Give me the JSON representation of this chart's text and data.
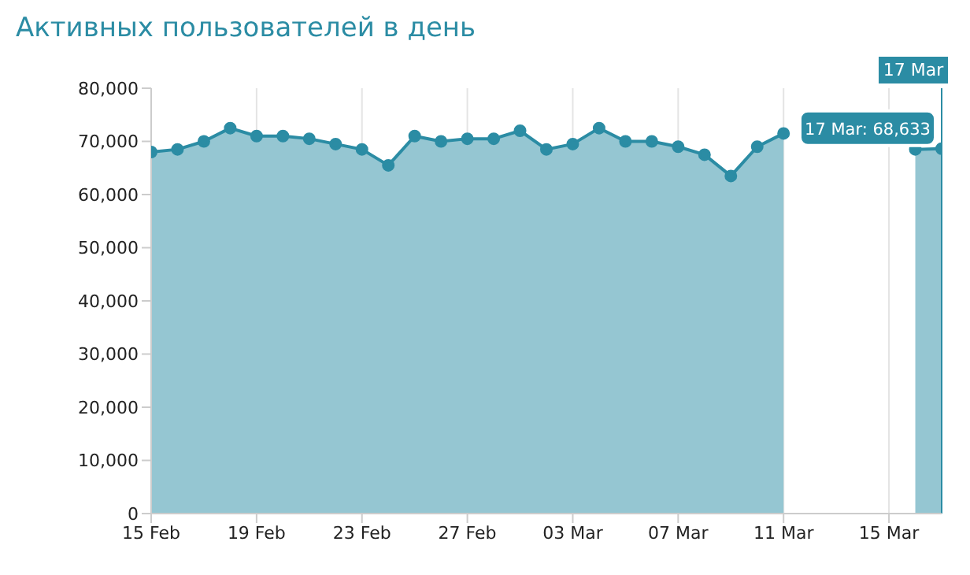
{
  "chart_data": {
    "type": "area",
    "title": "Активных пользователей в день",
    "x": [
      "--02-15",
      "--02-16",
      "--02-17",
      "--02-18",
      "--02-19",
      "--02-20",
      "--02-21",
      "--02-22",
      "--02-23",
      "--02-24",
      "--02-25",
      "--02-26",
      "--02-27",
      "--02-28",
      "--03-01",
      "--03-02",
      "--03-03",
      "--03-04",
      "--03-05",
      "--03-06",
      "--03-07",
      "--03-08",
      "--03-09",
      "--03-10",
      "--03-11",
      "--03-12",
      "--03-13",
      "--03-14",
      "--03-15",
      "--03-16",
      "--03-17"
    ],
    "series": [
      {
        "color": "#2b8ca4",
        "values": [
          68000,
          68500,
          70000,
          72500,
          71000,
          71000,
          70500,
          69500,
          68500,
          65500,
          71000,
          70000,
          70500,
          70500,
          72000,
          68500,
          69500,
          72500,
          70000,
          70000,
          69000,
          67500,
          63500,
          69000,
          71500,
          null,
          null,
          null,
          null,
          68500,
          68633
        ]
      }
    ],
    "xlim": [
      "--02-15",
      "--03-17"
    ],
    "xticks": [
      {
        "value": "--02-15",
        "label": "15 Feb"
      },
      {
        "value": "--02-19",
        "label": "19 Feb"
      },
      {
        "value": "--02-23",
        "label": "23 Feb"
      },
      {
        "value": "--02-27",
        "label": "27 Feb"
      },
      {
        "value": "--03-03",
        "label": "03 Mar"
      },
      {
        "value": "--03-07",
        "label": "07 Mar"
      },
      {
        "value": "--03-11",
        "label": "11 Mar"
      },
      {
        "value": "--03-15",
        "label": "15 Mar"
      }
    ],
    "ylim": [
      0,
      80000
    ],
    "yticks": [
      {
        "value": 0,
        "label": "0"
      },
      {
        "value": 10000,
        "label": "10,000"
      },
      {
        "value": 20000,
        "label": "20,000"
      },
      {
        "value": 30000,
        "label": "30,000"
      },
      {
        "value": 40000,
        "label": "40,000"
      },
      {
        "value": 50000,
        "label": "50,000"
      },
      {
        "value": 60000,
        "label": "60,000"
      },
      {
        "value": 70000,
        "label": "70,000"
      },
      {
        "value": 80000,
        "label": "80,000"
      }
    ],
    "grid": true,
    "marker": "circle",
    "ref_lines": [
      {
        "axis": "x",
        "value": "--03-17",
        "label": "17 Mar",
        "color": "#2b8ca4"
      }
    ],
    "annotations": [
      {
        "text": "17 Mar: 68,633",
        "x": "--03-17",
        "y": 68633
      }
    ]
  }
}
